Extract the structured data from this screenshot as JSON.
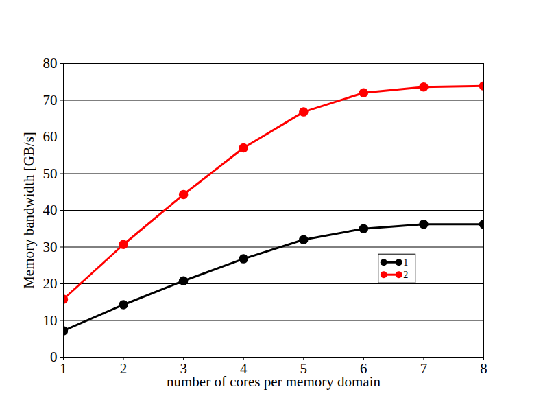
{
  "chart_data": {
    "type": "line",
    "x_label": "number of cores per memory domain",
    "y_label": "Memory bandwidth [GB/s]",
    "x": [
      1,
      2,
      3,
      4,
      5,
      6,
      7,
      8
    ],
    "series": [
      {
        "name": "1",
        "color": "#000000",
        "marker": "circle",
        "line_style": "solid",
        "values": [
          7.2,
          14.3,
          20.8,
          26.8,
          32.0,
          35.0,
          36.2,
          36.2
        ]
      },
      {
        "name": "2",
        "color": "#ff0000",
        "marker": "circle",
        "line_style": "solid",
        "values": [
          15.8,
          30.7,
          44.3,
          57.0,
          66.8,
          72.0,
          73.6,
          73.9
        ]
      }
    ],
    "xlim": [
      1,
      8
    ],
    "xticks": [
      1,
      2,
      3,
      4,
      5,
      6,
      7,
      8
    ],
    "ylim": [
      0,
      80
    ],
    "yticks": [
      0,
      10,
      20,
      30,
      40,
      50,
      60,
      70,
      80
    ],
    "grid": true,
    "legend": "right"
  }
}
